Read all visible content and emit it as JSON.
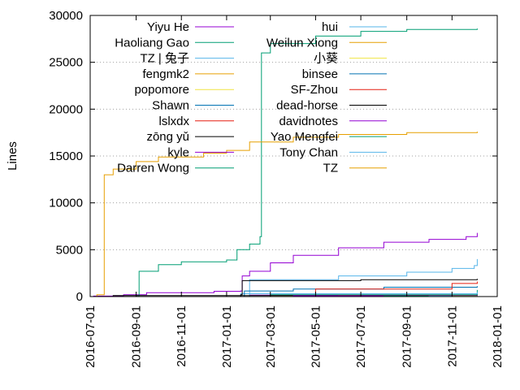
{
  "chart_data": {
    "type": "line",
    "title": "",
    "xlabel": "",
    "ylabel": "Lines",
    "ylim": [
      0,
      30000
    ],
    "xlim": [
      "2016-07-01",
      "2018-01-01"
    ],
    "grid": "horizontal dotted",
    "legend_placement": "top, two columns",
    "y_ticks": [
      "0",
      "5000",
      "10000",
      "15000",
      "20000",
      "25000",
      "30000"
    ],
    "x_ticks": [
      "2016-07-01",
      "2016-09-01",
      "2016-11-01",
      "2017-01-01",
      "2017-03-01",
      "2017-05-01",
      "2017-07-01",
      "2017-09-01",
      "2017-11-01",
      "2018-01-01"
    ],
    "series": [
      {
        "name": "Yiyu He",
        "color": "#9400d3",
        "points": [
          [
            "2016-07-05",
            50
          ],
          [
            "2016-08-15",
            200
          ],
          [
            "2016-09-15",
            420
          ],
          [
            "2016-12-15",
            560
          ],
          [
            "2017-01-20",
            600
          ],
          [
            "2017-01-22",
            2200
          ],
          [
            "2017-02-01",
            2700
          ],
          [
            "2017-03-01",
            3600
          ],
          [
            "2017-04-01",
            4400
          ],
          [
            "2017-06-01",
            5200
          ],
          [
            "2017-08-01",
            5800
          ],
          [
            "2017-10-01",
            6100
          ],
          [
            "2017-11-20",
            6400
          ],
          [
            "2017-12-05",
            6800
          ]
        ]
      },
      {
        "name": "Haoliang Gao",
        "color": "#009e73",
        "points": [
          [
            "2016-07-01",
            0
          ],
          [
            "2016-09-01",
            100
          ],
          [
            "2016-09-05",
            2700
          ],
          [
            "2016-10-01",
            3400
          ],
          [
            "2016-11-01",
            3700
          ],
          [
            "2017-01-01",
            3900
          ],
          [
            "2017-01-15",
            5000
          ],
          [
            "2017-02-01",
            5600
          ],
          [
            "2017-02-15",
            6400
          ],
          [
            "2017-02-17",
            26000
          ],
          [
            "2017-03-01",
            27000
          ],
          [
            "2017-05-01",
            27800
          ],
          [
            "2017-07-01",
            28300
          ],
          [
            "2017-09-01",
            28500
          ],
          [
            "2017-12-05",
            28600
          ]
        ]
      },
      {
        "name": "TZ | 兔子",
        "color": "#56b4e9",
        "points": [
          [
            "2016-07-01",
            0
          ],
          [
            "2017-01-20",
            300
          ],
          [
            "2017-02-01",
            1800
          ],
          [
            "2017-06-01",
            2200
          ],
          [
            "2017-09-01",
            2600
          ],
          [
            "2017-11-01",
            3000
          ],
          [
            "2017-12-01",
            3300
          ],
          [
            "2017-12-05",
            4000
          ]
        ]
      },
      {
        "name": "fengmk2",
        "color": "#e69f00",
        "points": [
          [
            "2016-07-01",
            0
          ],
          [
            "2016-07-10",
            200
          ],
          [
            "2016-07-20",
            13000
          ],
          [
            "2016-08-01",
            13600
          ],
          [
            "2016-09-01",
            14400
          ],
          [
            "2016-10-01",
            14900
          ],
          [
            "2016-12-01",
            15300
          ],
          [
            "2017-01-01",
            15600
          ],
          [
            "2017-02-01",
            16500
          ],
          [
            "2017-04-01",
            17000
          ],
          [
            "2017-06-01",
            17300
          ],
          [
            "2017-09-01",
            17500
          ],
          [
            "2017-12-05",
            17600
          ]
        ]
      },
      {
        "name": "popomore",
        "color": "#f0e442",
        "points": [
          [
            "2016-07-01",
            0
          ],
          [
            "2017-03-01",
            100
          ],
          [
            "2017-12-05",
            200
          ]
        ]
      },
      {
        "name": "Shawn",
        "color": "#0072b2",
        "points": [
          [
            "2016-07-01",
            0
          ],
          [
            "2017-01-25",
            600
          ],
          [
            "2017-04-01",
            800
          ],
          [
            "2017-08-01",
            1000
          ],
          [
            "2017-12-05",
            1100
          ]
        ]
      },
      {
        "name": "lslxdx",
        "color": "#e51e10",
        "points": [
          [
            "2016-07-01",
            0
          ],
          [
            "2017-05-01",
            800
          ],
          [
            "2017-11-01",
            1400
          ],
          [
            "2017-12-05",
            1600
          ]
        ]
      },
      {
        "name": "zōng yǔ",
        "color": "#000000",
        "points": [
          [
            "2016-07-01",
            0
          ],
          [
            "2017-01-20",
            200
          ],
          [
            "2017-01-22",
            1700
          ],
          [
            "2017-07-01",
            1800
          ],
          [
            "2017-12-05",
            1900
          ]
        ]
      },
      {
        "name": "kyle",
        "color": "#9400d3",
        "points": [
          [
            "2016-07-01",
            0
          ],
          [
            "2017-02-01",
            150
          ],
          [
            "2017-12-05",
            300
          ]
        ]
      },
      {
        "name": "Darren Wong",
        "color": "#009e73",
        "points": [
          [
            "2016-07-01",
            0
          ],
          [
            "2017-03-01",
            200
          ],
          [
            "2017-12-05",
            700
          ]
        ]
      },
      {
        "name": "hui",
        "color": "#56b4e9",
        "points": [
          [
            "2016-07-01",
            0
          ],
          [
            "2017-02-01",
            300
          ],
          [
            "2017-12-05",
            500
          ]
        ]
      },
      {
        "name": "Weilun Xiong",
        "color": "#e69f00",
        "points": [
          [
            "2016-07-01",
            0
          ],
          [
            "2017-06-01",
            100
          ],
          [
            "2017-12-05",
            150
          ]
        ]
      },
      {
        "name": "小葵",
        "color": "#f0e442",
        "points": [
          [
            "2016-07-01",
            0
          ],
          [
            "2017-12-05",
            100
          ]
        ]
      },
      {
        "name": "binsee",
        "color": "#0072b2",
        "points": [
          [
            "2016-07-01",
            0
          ],
          [
            "2017-07-01",
            100
          ],
          [
            "2017-12-05",
            200
          ]
        ]
      },
      {
        "name": "SF-Zhou",
        "color": "#e51e10",
        "points": [
          [
            "2016-07-01",
            0
          ],
          [
            "2017-09-01",
            100
          ],
          [
            "2017-12-05",
            150
          ]
        ]
      },
      {
        "name": "dead-horse",
        "color": "#000000",
        "points": [
          [
            "2016-07-01",
            0
          ],
          [
            "2016-08-01",
            100
          ],
          [
            "2017-12-05",
            100
          ]
        ]
      },
      {
        "name": "davidnotes",
        "color": "#9400d3",
        "points": [
          [
            "2016-07-01",
            0
          ],
          [
            "2017-04-01",
            80
          ],
          [
            "2017-12-05",
            100
          ]
        ]
      },
      {
        "name": "Yao Mengfei",
        "color": "#009e73",
        "points": [
          [
            "2016-07-01",
            0
          ],
          [
            "2017-08-01",
            50
          ],
          [
            "2017-12-05",
            80
          ]
        ]
      },
      {
        "name": "Tony Chan",
        "color": "#56b4e9",
        "points": [
          [
            "2016-07-01",
            0
          ],
          [
            "2017-10-01",
            50
          ],
          [
            "2017-12-05",
            60
          ]
        ]
      },
      {
        "name": "TZ",
        "color": "#e69f00",
        "points": [
          [
            "2016-07-01",
            0
          ],
          [
            "2017-11-01",
            30
          ],
          [
            "2017-12-05",
            40
          ]
        ]
      }
    ]
  }
}
